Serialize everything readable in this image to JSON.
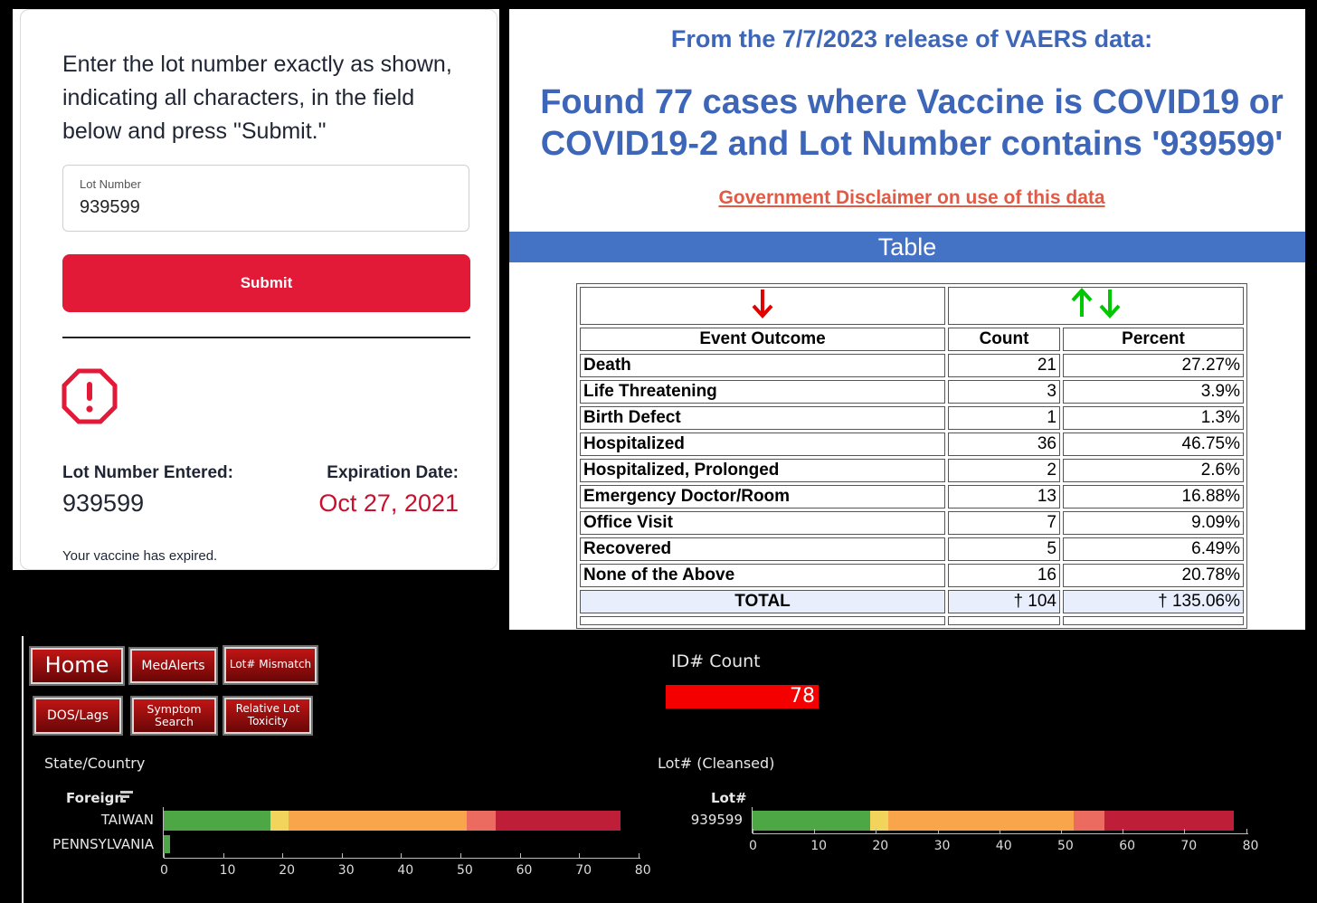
{
  "lot_check": {
    "instructions": "Enter the lot number exactly as shown, indicating all characters, in the field below and press \"Submit.\"",
    "field_label": "Lot Number",
    "field_value": "939599",
    "submit_label": "Submit",
    "lot_entered_label": "Lot Number Entered:",
    "lot_entered_value": "939599",
    "expiration_label": "Expiration Date:",
    "expiration_value": "Oct 27, 2021",
    "status_text": "Your vaccine has expired."
  },
  "vaers": {
    "subtitle": "From the 7/7/2023 release of VAERS data:",
    "title": "Found 77 cases where Vaccine is COVID19 or COVID19-2 and Lot Number contains '939599'",
    "disclaimer": "Government Disclaimer on use of this data",
    "section_label": "Table",
    "columns": [
      "Event Outcome",
      "Count",
      "Percent"
    ],
    "rows": [
      {
        "outcome": "Death",
        "count": "21",
        "percent": "27.27%"
      },
      {
        "outcome": "Life Threatening",
        "count": "3",
        "percent": "3.9%"
      },
      {
        "outcome": "Birth Defect",
        "count": "1",
        "percent": "1.3%"
      },
      {
        "outcome": "Hospitalized",
        "count": "36",
        "percent": "46.75%"
      },
      {
        "outcome": "Hospitalized, Prolonged",
        "count": "2",
        "percent": "2.6%"
      },
      {
        "outcome": "Emergency Doctor/Room",
        "count": "13",
        "percent": "16.88%"
      },
      {
        "outcome": "Office Visit",
        "count": "7",
        "percent": "9.09%"
      },
      {
        "outcome": "Recovered",
        "count": "5",
        "percent": "6.49%"
      },
      {
        "outcome": "None of the Above",
        "count": "16",
        "percent": "20.78%"
      }
    ],
    "total": {
      "outcome": "TOTAL",
      "count": "† 104",
      "percent": "† 135.06%"
    },
    "colors": {
      "sort_desc": "#e00000",
      "sort_up": "#00c800",
      "sort_down": "#00c800",
      "link": "#e05a45",
      "header_bar": "#4472c4"
    }
  },
  "dashboard": {
    "nav_buttons": [
      "Home",
      "MedAlerts",
      "Lot# Mismatch",
      "DOS/Lags",
      "Symptom Search",
      "Relative Lot Toxicity"
    ],
    "id_count_label": "ID# Count",
    "id_count_value": "78",
    "state_panel_title": "State/Country",
    "state_dim_header": "Foreign",
    "lot_panel_title": "Lot# (Cleansed)",
    "lot_dim_header": "Lot#",
    "segment_colors": [
      "#4ea745",
      "#f2d45c",
      "#f8a54b",
      "#ec6b61",
      "#be1e37"
    ],
    "chart_data": [
      {
        "type": "bar",
        "orientation": "horizontal",
        "stacked": true,
        "categories": [
          "TAIWAN",
          "PENNSYLVANIA"
        ],
        "xlim": [
          0,
          80
        ],
        "ticks": [
          0,
          10,
          20,
          30,
          40,
          50,
          60,
          70,
          80
        ],
        "rows": [
          {
            "category": "TAIWAN",
            "segments": [
              18,
              3,
              30,
              5,
              21
            ]
          },
          {
            "category": "PENNSYLVANIA",
            "segments": [
              1
            ]
          }
        ]
      },
      {
        "type": "bar",
        "orientation": "horizontal",
        "stacked": true,
        "categories": [
          "939599"
        ],
        "xlim": [
          0,
          80
        ],
        "ticks": [
          0,
          10,
          20,
          30,
          40,
          50,
          60,
          70,
          80
        ],
        "rows": [
          {
            "category": "939599",
            "segments": [
              19,
              3,
              30,
              5,
              21
            ]
          }
        ]
      }
    ]
  }
}
